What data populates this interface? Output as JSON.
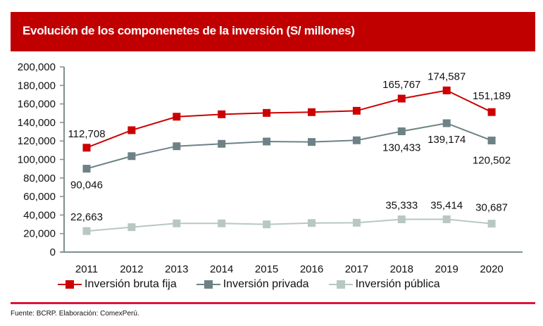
{
  "header": {
    "title": "Evolución de los componenetes de la inversión (S/ millones)"
  },
  "footer": {
    "source": "Fuente: BCRP. Elaboración: ComexPerú."
  },
  "colors": {
    "banner": "#c00000",
    "divider": "#dc143c",
    "axis": "#7f8f8f"
  },
  "chart_data": {
    "type": "line",
    "title": "Evolución de los componenetes de la inversión (S/ millones)",
    "xlabel": "",
    "ylabel": "",
    "categories": [
      "2011",
      "2012",
      "2013",
      "2014",
      "2015",
      "2016",
      "2017",
      "2018",
      "2019",
      "2020"
    ],
    "ylim": [
      0,
      200000
    ],
    "yticks": [
      0,
      20000,
      40000,
      60000,
      80000,
      100000,
      120000,
      140000,
      160000,
      180000,
      200000
    ],
    "ytick_labels": [
      "0",
      "20,000",
      "40,000",
      "60,000",
      "80,000",
      "100,000",
      "120,000",
      "140,000",
      "160,000",
      "180,000",
      "200,000"
    ],
    "grid": false,
    "legend_position": "bottom",
    "series": [
      {
        "name": "Inversión bruta fija",
        "color": "#cc0000",
        "marker": "square",
        "values": [
          112708,
          131600,
          146200,
          148800,
          150300,
          151100,
          152600,
          165767,
          174587,
          151189
        ],
        "labels": {
          "0": "112,708",
          "7": "165,767",
          "8": "174,587",
          "9": "151,189"
        },
        "label_side": "above"
      },
      {
        "name": "Inversión privada",
        "color": "#6e8286",
        "marker": "square",
        "values": [
          90046,
          103600,
          114300,
          116900,
          119400,
          118900,
          120700,
          130433,
          139174,
          120502
        ],
        "labels": {
          "0": "90,046",
          "7": "130,433",
          "8": "139,174",
          "9": "120,502"
        },
        "label_side": "below"
      },
      {
        "name": "Inversión pública",
        "color": "#b8c7c4",
        "marker": "square",
        "values": [
          22663,
          26900,
          31000,
          31000,
          29900,
          31400,
          31700,
          35333,
          35414,
          30687
        ],
        "labels": {
          "0": "22,663",
          "7": "35,333",
          "8": "35,414",
          "9": "30,687"
        },
        "label_side": "above"
      }
    ]
  }
}
